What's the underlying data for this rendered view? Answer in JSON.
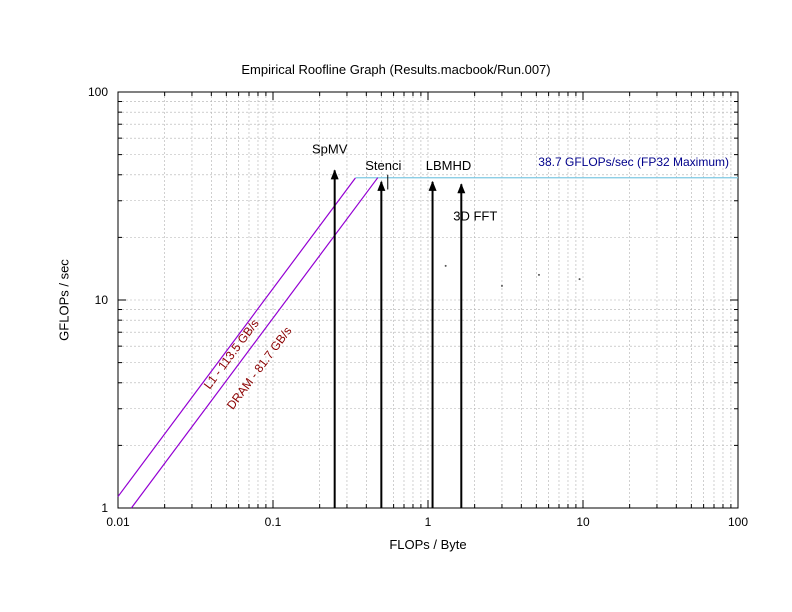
{
  "chart_data": {
    "type": "line",
    "title": "Empirical Roofline Graph (Results.macbook/Run.007)",
    "xlabel": "FLOPs / Byte",
    "ylabel": "GFLOPs / sec",
    "x_scale": "log",
    "y_scale": "log",
    "xlim": [
      0.01,
      100
    ],
    "ylim": [
      1,
      100
    ],
    "grid": true,
    "x_ticks": [
      "0.01",
      "0.1",
      "1",
      "10",
      "100"
    ],
    "y_ticks": [
      "1",
      "10",
      "100"
    ],
    "colors": {
      "bandwidth": "#9400d3",
      "compute": "#7ec8e3",
      "bandwidth_label": "#8b0000",
      "compute_label": "#00008b",
      "grid": "#b0b0b0"
    },
    "ceilings": [
      {
        "kind": "compute",
        "label": "38.7 GFLOPs/sec (FP32 Maximum)",
        "gflops": 38.7,
        "x_range": [
          0.34,
          100
        ]
      },
      {
        "kind": "bandwidth",
        "label": "L1 - 113.5 GB/s",
        "gbps": 113.5,
        "x_range": [
          0.01,
          0.34
        ]
      },
      {
        "kind": "bandwidth",
        "label": "DRAM - 81.7 GB/s",
        "gbps": 81.7,
        "x_range": [
          0.0122,
          0.474
        ]
      }
    ],
    "kernels": [
      {
        "label": "SpMV",
        "ai": 0.25,
        "top": 42
      },
      {
        "label": "Stenci",
        "ai": 0.5,
        "top": 37
      },
      {
        "label": "LBMHD",
        "ai": 1.07,
        "top": 37
      },
      {
        "label": "3D FFT",
        "ai": 1.64,
        "top": 36
      }
    ],
    "scatter_points": [
      {
        "x": 1.3,
        "y": 14.6
      },
      {
        "x": 3.0,
        "y": 11.7
      },
      {
        "x": 5.2,
        "y": 13.2
      },
      {
        "x": 9.5,
        "y": 12.6
      }
    ],
    "markers": [
      {
        "x": 0.55,
        "y_range": [
          34,
          40
        ]
      }
    ]
  }
}
